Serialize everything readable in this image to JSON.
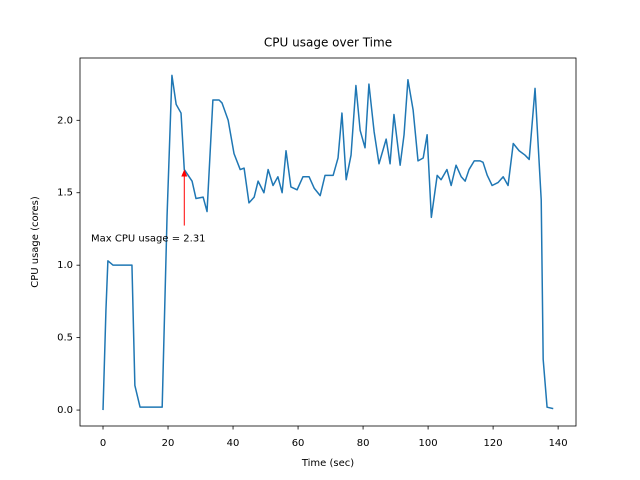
{
  "chart_data": {
    "type": "line",
    "title": "CPU usage over Time",
    "x_label": "Time (sec)",
    "y_label": "CPU usage (cores)",
    "xlim": [
      -7.08,
      145.5
    ],
    "ylim": [
      -0.11,
      2.43
    ],
    "xticks": [
      0,
      20,
      40,
      60,
      80,
      100,
      120,
      140
    ],
    "yticks": [
      {
        "value": 0,
        "label": "0.0"
      },
      0.5,
      {
        "value": 1,
        "label": "1.0"
      },
      1.5,
      {
        "value": 2,
        "label": "2.0"
      }
    ],
    "grid": false,
    "annotation": {
      "text": "Max CPU usage = 2.31",
      "color": "#ff0000",
      "point_index": 16
    },
    "series": [
      {
        "name": "CPU usage",
        "color": "#1f77b4",
        "x": [
          0,
          0.9,
          1.5,
          3.1,
          5.2,
          7.4,
          8.9,
          9.8,
          11.4,
          14.5,
          16.6,
          18.2,
          19.7,
          21.2,
          22.5,
          24,
          25,
          27.4,
          28.6,
          30.8,
          32,
          33.8,
          35.7,
          36.6,
          38.5,
          40.3,
          42.2,
          43.4,
          44.9,
          46.5,
          47.7,
          49.5,
          50.8,
          52.3,
          53.8,
          55.1,
          56.3,
          57.8,
          59.7,
          61.5,
          63.4,
          65,
          66.8,
          68.3,
          70.8,
          72.3,
          73.5,
          74.8,
          76.3,
          77.8,
          79.1,
          80.6,
          81.8,
          83.4,
          84.9,
          87.1,
          88.3,
          89.5,
          91.4,
          92.6,
          93.8,
          95.4,
          96.9,
          98.5,
          99.7,
          101,
          102.8,
          104,
          105.8,
          107.1,
          108.6,
          110.2,
          111.4,
          112.6,
          114.2,
          116,
          116.9,
          118.2,
          119.7,
          121.5,
          123.1,
          124.6,
          126.2,
          128,
          129.8,
          131.1,
          132.9,
          134.8,
          135.4,
          136.6,
          138.5
        ],
        "values": [
          0,
          0.69,
          1.03,
          1.0,
          1.0,
          1.0,
          1.0,
          0.17,
          0.02,
          0.02,
          0.02,
          0.02,
          1.34,
          2.31,
          2.11,
          2.05,
          1.66,
          1.58,
          1.46,
          1.47,
          1.37,
          2.14,
          2.14,
          2.12,
          2.0,
          1.77,
          1.66,
          1.67,
          1.43,
          1.47,
          1.58,
          1.5,
          1.66,
          1.55,
          1.61,
          1.5,
          1.79,
          1.54,
          1.52,
          1.61,
          1.61,
          1.53,
          1.48,
          1.62,
          1.62,
          1.74,
          2.05,
          1.59,
          1.76,
          2.24,
          1.93,
          1.81,
          2.25,
          1.92,
          1.7,
          1.87,
          1.7,
          2.04,
          1.69,
          1.9,
          2.28,
          2.07,
          1.72,
          1.74,
          1.9,
          1.33,
          1.62,
          1.59,
          1.66,
          1.55,
          1.69,
          1.61,
          1.58,
          1.66,
          1.72,
          1.72,
          1.71,
          1.62,
          1.55,
          1.57,
          1.61,
          1.55,
          1.84,
          1.79,
          1.76,
          1.73,
          2.22,
          1.45,
          0.35,
          0.02,
          0.01
        ]
      }
    ]
  }
}
